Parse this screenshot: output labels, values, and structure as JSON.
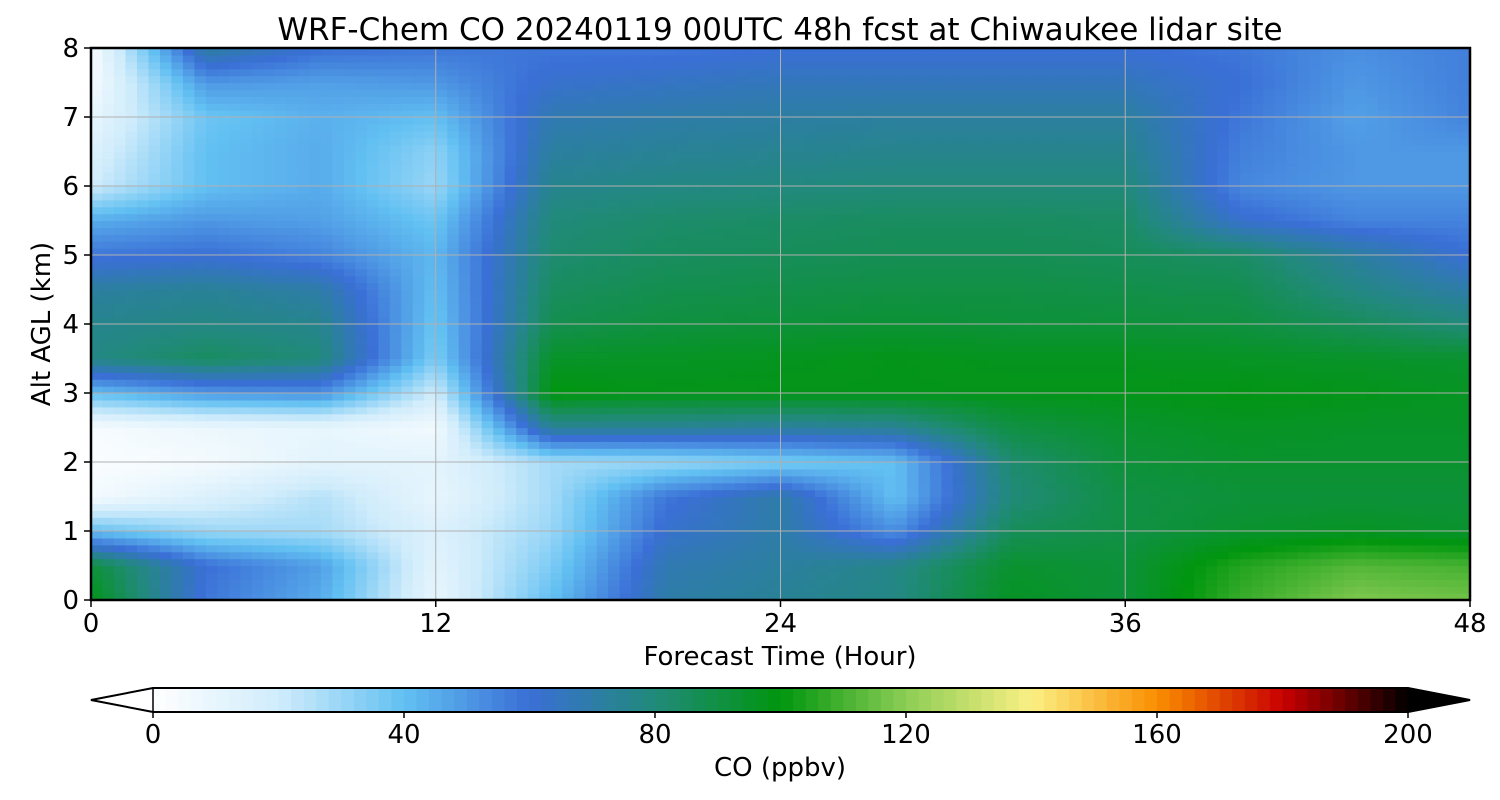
{
  "chart_data": {
    "type": "heatmap",
    "title": "WRF-Chem CO  20240119 00UTC 48h fcst at Chiwaukee lidar site",
    "xlabel": "Forecast Time (Hour)",
    "ylabel": "Alt AGL (km)",
    "xlim": [
      0,
      48
    ],
    "ylim": [
      0,
      8
    ],
    "x_ticks": [
      "0",
      "12",
      "24",
      "36",
      "48"
    ],
    "y_ticks": [
      "0",
      "1",
      "2",
      "3",
      "4",
      "5",
      "6",
      "7",
      "8"
    ],
    "grid": true,
    "x": [
      0,
      4,
      8,
      12,
      16,
      20,
      24,
      28,
      32,
      36,
      40,
      44,
      48
    ],
    "y": [
      0,
      0.5,
      1,
      1.5,
      2,
      2.5,
      3,
      3.5,
      4,
      4.5,
      5,
      5.5,
      6,
      6.5,
      7,
      7.5,
      8
    ],
    "z": [
      [
        98,
        58,
        45,
        10,
        40,
        70,
        74,
        78,
        96,
        92,
        108,
        118,
        116
      ],
      [
        92,
        60,
        48,
        12,
        35,
        68,
        72,
        77,
        94,
        92,
        105,
        112,
        110
      ],
      [
        40,
        30,
        28,
        15,
        30,
        62,
        70,
        52,
        86,
        90,
        94,
        96,
        94
      ],
      [
        5,
        15,
        25,
        10,
        28,
        58,
        70,
        40,
        80,
        90,
        92,
        92,
        92
      ],
      [
        2,
        5,
        12,
        12,
        28,
        30,
        35,
        40,
        82,
        92,
        94,
        94,
        94
      ],
      [
        4,
        8,
        10,
        6,
        74,
        74,
        72,
        74,
        90,
        94,
        96,
        95,
        95
      ],
      [
        40,
        50,
        52,
        20,
        100,
        98,
        98,
        98,
        98,
        98,
        99,
        98,
        96
      ],
      [
        78,
        85,
        80,
        35,
        95,
        96,
        97,
        98,
        97,
        97,
        96,
        95,
        94
      ],
      [
        76,
        78,
        76,
        38,
        88,
        91,
        92,
        93,
        92,
        92,
        91,
        86,
        80
      ],
      [
        72,
        74,
        70,
        40,
        85,
        88,
        89,
        90,
        90,
        89,
        88,
        78,
        70
      ],
      [
        58,
        60,
        55,
        42,
        82,
        85,
        86,
        87,
        87,
        86,
        84,
        72,
        60
      ],
      [
        45,
        50,
        48,
        38,
        80,
        83,
        84,
        85,
        85,
        84,
        62,
        55,
        55
      ],
      [
        20,
        40,
        45,
        30,
        76,
        78,
        79,
        80,
        80,
        80,
        54,
        50,
        50
      ],
      [
        15,
        40,
        45,
        32,
        72,
        74,
        75,
        76,
        76,
        76,
        56,
        50,
        50
      ],
      [
        10,
        38,
        44,
        40,
        68,
        70,
        71,
        72,
        72,
        72,
        58,
        48,
        55
      ],
      [
        5,
        50,
        48,
        50,
        62,
        64,
        66,
        66,
        66,
        66,
        60,
        50,
        56
      ],
      [
        4,
        72,
        60,
        58,
        58,
        58,
        60,
        60,
        60,
        60,
        58,
        52,
        56
      ]
    ],
    "colorbar": {
      "label": "CO  (ppbv)",
      "min": 0,
      "max": 200,
      "ticks": [
        "0",
        "40",
        "80",
        "120",
        "160",
        "200"
      ],
      "extend": "both",
      "colors": [
        "#ffffff",
        "#d0ecfb",
        "#62c0f2",
        "#3a6fd6",
        "#218a7a",
        "#00960e",
        "#8ccd55",
        "#fbf084",
        "#fa8e00",
        "#c80000",
        "#000000"
      ]
    }
  }
}
